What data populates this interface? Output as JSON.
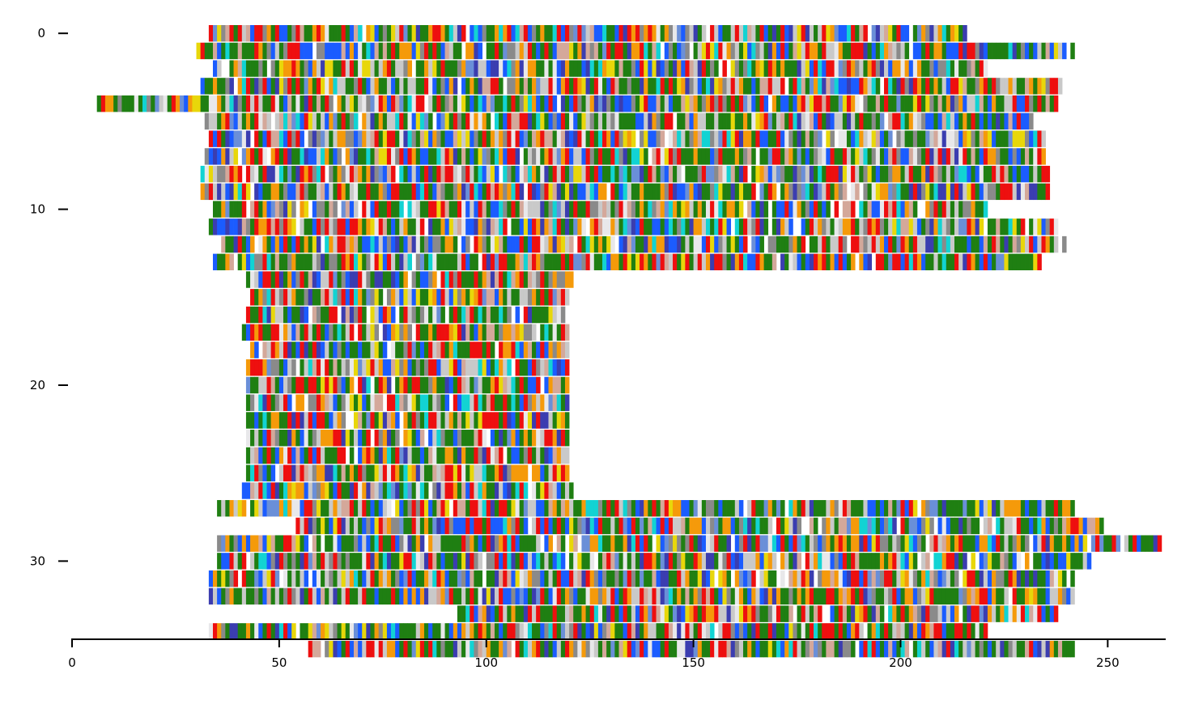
{
  "chart_data": {
    "type": "heatmap",
    "description_free": true,
    "title": "",
    "xlabel": "",
    "ylabel": "",
    "xlim": [
      0,
      264
    ],
    "ylim": [
      0,
      34
    ],
    "y_axis_inverted": true,
    "grid": false,
    "x_ticks": [
      0,
      50,
      100,
      150,
      200,
      250
    ],
    "y_ticks": [
      0,
      10,
      20,
      30
    ],
    "palette": [
      "#1f7f12",
      "#ee0f0f",
      "#f59a0a",
      "#1b5cff",
      "#3b3db0",
      "#e8d70a",
      "#12d3d3",
      "#c9c9c9",
      "#d4a89a",
      "#8a8a8a",
      "#e8e8ea",
      "#6a8fd8"
    ],
    "palette_weights": [
      22,
      13,
      9,
      10,
      6,
      4,
      5,
      8,
      5,
      7,
      3,
      3
    ],
    "rows": [
      {
        "start": 33,
        "end": 216
      },
      {
        "start": 30,
        "end": 242
      },
      {
        "start": 33,
        "end": 221
      },
      {
        "start": 31,
        "end": 239
      },
      {
        "start": 6,
        "end": 238
      },
      {
        "start": 32,
        "end": 232
      },
      {
        "start": 33,
        "end": 235
      },
      {
        "start": 32,
        "end": 235
      },
      {
        "start": 31,
        "end": 236
      },
      {
        "start": 31,
        "end": 236
      },
      {
        "start": 34,
        "end": 221
      },
      {
        "start": 33,
        "end": 238
      },
      {
        "start": 35,
        "end": 240
      },
      {
        "start": 33,
        "end": 234
      },
      {
        "start": 42,
        "end": 121
      },
      {
        "start": 43,
        "end": 120
      },
      {
        "start": 42,
        "end": 120
      },
      {
        "start": 41,
        "end": 120
      },
      {
        "start": 43,
        "end": 120
      },
      {
        "start": 42,
        "end": 120
      },
      {
        "start": 42,
        "end": 120
      },
      {
        "start": 42,
        "end": 120
      },
      {
        "start": 42,
        "end": 120
      },
      {
        "start": 42,
        "end": 120
      },
      {
        "start": 42,
        "end": 120
      },
      {
        "start": 42,
        "end": 120
      },
      {
        "start": 41,
        "end": 121
      },
      {
        "start": 35,
        "end": 242
      },
      {
        "start": 54,
        "end": 249
      },
      {
        "start": 35,
        "end": 263
      },
      {
        "start": 35,
        "end": 246
      },
      {
        "start": 33,
        "end": 242
      },
      {
        "start": 33,
        "end": 242
      },
      {
        "start": 93,
        "end": 238
      },
      {
        "start": 33,
        "end": 221
      },
      {
        "start": 57,
        "end": 242
      }
    ]
  }
}
